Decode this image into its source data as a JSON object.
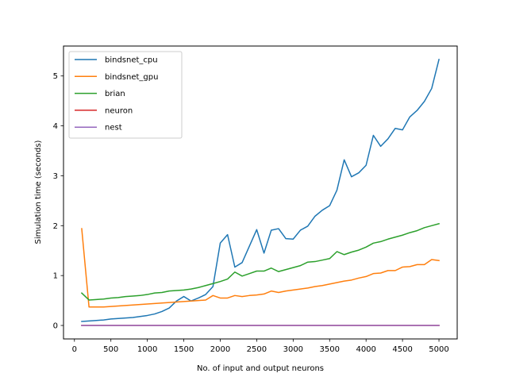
{
  "chart_data": {
    "type": "line",
    "title": "",
    "xlabel": "No. of input and output neurons",
    "ylabel": "Simulation time (seconds)",
    "xlim": [
      -150,
      5250
    ],
    "ylim": [
      -0.27,
      5.6
    ],
    "xticks": [
      0,
      500,
      1000,
      1500,
      2000,
      2500,
      3000,
      3500,
      4000,
      4500,
      5000
    ],
    "xtick_labels": [
      "0",
      "500",
      "1000",
      "1500",
      "2000",
      "2500",
      "3000",
      "3500",
      "4000",
      "4500",
      "5000"
    ],
    "yticks": [
      0,
      1,
      2,
      3,
      4,
      5
    ],
    "ytick_labels": [
      "0",
      "1",
      "2",
      "3",
      "4",
      "5"
    ],
    "grid": false,
    "legend_position": "upper-left",
    "x": [
      100,
      200,
      300,
      400,
      500,
      600,
      700,
      800,
      900,
      1000,
      1100,
      1200,
      1300,
      1400,
      1500,
      1600,
      1700,
      1800,
      1900,
      2000,
      2100,
      2200,
      2300,
      2400,
      2500,
      2600,
      2700,
      2800,
      2900,
      3000,
      3100,
      3200,
      3300,
      3400,
      3500,
      3600,
      3700,
      3800,
      3900,
      4000,
      4100,
      4200,
      4300,
      4400,
      4500,
      4600,
      4700,
      4800,
      4900,
      5000
    ],
    "series": [
      {
        "name": "bindsnet_cpu",
        "color": "#1f77b4",
        "values": [
          0.08,
          0.09,
          0.1,
          0.11,
          0.13,
          0.14,
          0.15,
          0.16,
          0.18,
          0.2,
          0.23,
          0.28,
          0.35,
          0.49,
          0.58,
          0.49,
          0.55,
          0.62,
          0.78,
          1.65,
          1.82,
          1.17,
          1.26,
          1.59,
          1.92,
          1.45,
          1.91,
          1.94,
          1.74,
          1.73,
          1.91,
          1.99,
          2.19,
          2.31,
          2.4,
          2.71,
          3.32,
          2.98,
          3.06,
          3.21,
          3.81,
          3.59,
          3.74,
          3.95,
          3.92,
          4.18,
          4.31,
          4.49,
          4.75,
          5.33
        ]
      },
      {
        "name": "bindsnet_gpu",
        "color": "#ff7f0e",
        "values": [
          1.94,
          0.37,
          0.37,
          0.37,
          0.38,
          0.39,
          0.4,
          0.41,
          0.42,
          0.43,
          0.44,
          0.45,
          0.46,
          0.47,
          0.48,
          0.49,
          0.5,
          0.51,
          0.6,
          0.55,
          0.55,
          0.6,
          0.58,
          0.6,
          0.61,
          0.63,
          0.69,
          0.66,
          0.69,
          0.71,
          0.73,
          0.75,
          0.78,
          0.8,
          0.83,
          0.86,
          0.89,
          0.91,
          0.95,
          0.98,
          1.04,
          1.05,
          1.1,
          1.1,
          1.17,
          1.18,
          1.22,
          1.22,
          1.32,
          1.3
        ]
      },
      {
        "name": "brian",
        "color": "#2ca02c",
        "values": [
          0.65,
          0.51,
          0.52,
          0.53,
          0.55,
          0.56,
          0.58,
          0.59,
          0.6,
          0.62,
          0.65,
          0.66,
          0.69,
          0.7,
          0.71,
          0.73,
          0.76,
          0.8,
          0.84,
          0.88,
          0.93,
          1.07,
          0.99,
          1.04,
          1.09,
          1.09,
          1.15,
          1.08,
          1.12,
          1.16,
          1.2,
          1.27,
          1.28,
          1.31,
          1.34,
          1.48,
          1.42,
          1.47,
          1.51,
          1.57,
          1.65,
          1.68,
          1.73,
          1.77,
          1.81,
          1.86,
          1.9,
          1.96,
          2.0,
          2.04
        ]
      },
      {
        "name": "neuron",
        "color": "#d62728",
        "values": [
          0,
          0,
          0,
          0,
          0,
          0,
          0,
          0,
          0,
          0,
          0,
          0,
          0,
          0,
          0,
          0,
          0,
          0,
          0,
          0,
          0,
          0,
          0,
          0,
          0,
          0,
          0,
          0,
          0,
          0,
          0,
          0,
          0,
          0,
          0,
          0,
          0,
          0,
          0,
          0,
          0,
          0,
          0,
          0,
          0,
          0,
          0,
          0,
          0,
          0
        ]
      },
      {
        "name": "nest",
        "color": "#9467bd",
        "values": [
          0,
          0,
          0,
          0,
          0,
          0,
          0,
          0,
          0,
          0,
          0,
          0,
          0,
          0,
          0,
          0,
          0,
          0,
          0,
          0,
          0,
          0,
          0,
          0,
          0,
          0,
          0,
          0,
          0,
          0,
          0,
          0,
          0,
          0,
          0,
          0,
          0,
          0,
          0,
          0,
          0,
          0,
          0,
          0,
          0,
          0,
          0,
          0,
          0,
          0
        ]
      }
    ]
  }
}
